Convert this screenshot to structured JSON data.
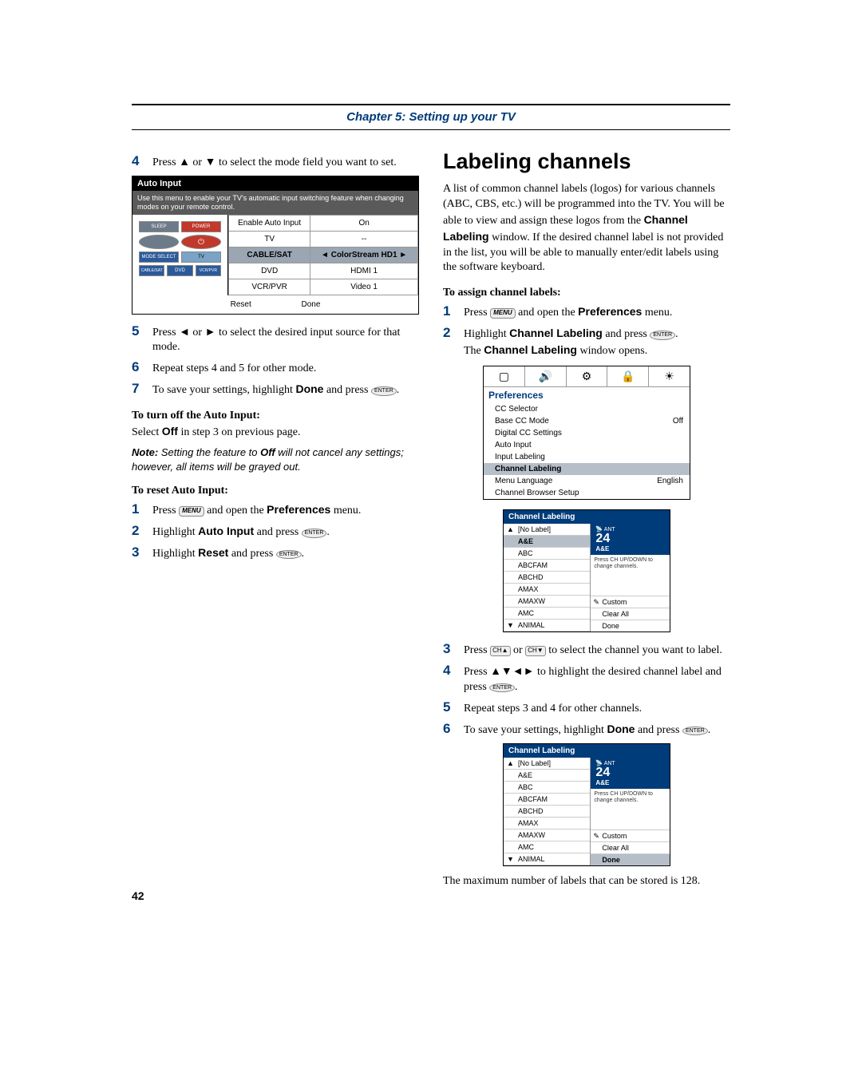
{
  "chapter": {
    "title": "Chapter 5: Setting up your TV"
  },
  "left": {
    "step4": {
      "num": "4",
      "text_a": "Press ",
      "text_b": " or ",
      "text_c": " to select the mode field you want to set."
    },
    "auto_input": {
      "title": "Auto Input",
      "desc": "Use this menu to enable your TV's automatic input switching feature when changing modes on your remote control.",
      "remote": {
        "sleep": "SLEEP",
        "power": "POWER",
        "mode": "MODE SELECT",
        "tv": "TV",
        "cablesat": "CABLE/SAT",
        "dvd": "DVD",
        "vcrpvr": "VCR/PVR"
      },
      "rows": [
        {
          "l": "Enable Auto Input",
          "r": "On"
        },
        {
          "l": "TV",
          "r": "--"
        },
        {
          "l": "CABLE/SAT",
          "r": "ColorStream HD1",
          "sel": true,
          "arrows": true
        },
        {
          "l": "DVD",
          "r": "HDMI 1"
        },
        {
          "l": "VCR/PVR",
          "r": "Video 1"
        }
      ],
      "footer": {
        "reset": "Reset",
        "done": "Done"
      }
    },
    "step5": {
      "num": "5",
      "text_a": "Press ",
      "text_b": " or ",
      "text_c": " to select the desired input source for that mode."
    },
    "step6": {
      "num": "6",
      "text": "Repeat steps 4 and 5 for other mode."
    },
    "step7": {
      "num": "7",
      "text_a": "To save your settings, highlight ",
      "done": "Done",
      "text_b": " and press ",
      "enter": "ENTER",
      "text_c": "."
    },
    "head_turnoff": "To turn off the Auto Input:",
    "turnoff_text_a": "Select ",
    "turnoff_off": "Off",
    "turnoff_text_b": " in step 3 on previous page.",
    "note_label": "Note:",
    "note_text_a": " Setting the feature to ",
    "note_off": "Off",
    "note_text_b": " will not cancel any settings; however, all items will be grayed out.",
    "head_reset": "To reset Auto Input:",
    "r1": {
      "num": "1",
      "text_a": "Press ",
      "menu": "MENU",
      "text_b": " and open the ",
      "pref": "Preferences",
      "text_c": " menu."
    },
    "r2": {
      "num": "2",
      "text_a": "Highlight ",
      "auto": "Auto Input",
      "text_b": " and press ",
      "enter": "ENTER",
      "text_c": "."
    },
    "r3": {
      "num": "3",
      "text_a": "Highlight ",
      "reset": "Reset",
      "text_b": " and press ",
      "enter": "ENTER",
      "text_c": "."
    }
  },
  "right": {
    "h1": "Labeling channels",
    "intro_a": "A list of common channel labels (logos) for various channels (ABC, CBS, etc.) will be programmed into the TV. You will be able to view and assign these logos from the ",
    "intro_bold": "Channel Labeling",
    "intro_b": " window. If the desired channel label is not provided in the list, you will be able to manually enter/edit labels using the software keyboard.",
    "head_assign": "To assign channel labels:",
    "s1": {
      "num": "1",
      "text_a": "Press ",
      "menu": "MENU",
      "text_b": " and open the ",
      "pref": "Preferences",
      "text_c": " menu."
    },
    "s2": {
      "num": "2",
      "text_a": "Highlight ",
      "cl": "Channel Labeling",
      "text_b": " and press ",
      "enter": "ENTER",
      "text_c": ".",
      "text_d": "The ",
      "clw": "Channel Labeling",
      "text_e": " window opens."
    },
    "prefs": {
      "title": "Preferences",
      "rows": [
        {
          "l": "CC Selector",
          "r": ""
        },
        {
          "l": "Base CC Mode",
          "r": "Off"
        },
        {
          "l": "Digital CC Settings",
          "r": ""
        },
        {
          "l": "Auto Input",
          "r": ""
        },
        {
          "l": "Input Labeling",
          "r": ""
        },
        {
          "l": "Channel Labeling",
          "r": "",
          "sel": true
        },
        {
          "l": "Menu Language",
          "r": "English"
        },
        {
          "l": "Channel Browser Setup",
          "r": ""
        }
      ]
    },
    "cl_panel_1": {
      "title": "Channel Labeling",
      "list": [
        {
          "t": "[No Label]",
          "up": true
        },
        {
          "t": "A&E",
          "sel": true
        },
        {
          "t": "ABC"
        },
        {
          "t": "ABCFAM"
        },
        {
          "t": "ABCHD"
        },
        {
          "t": "AMAX"
        },
        {
          "t": "AMAXW"
        },
        {
          "t": "AMC"
        },
        {
          "t": "ANIMAL",
          "down": true
        }
      ],
      "preview": {
        "ant": "ANT",
        "num": "24",
        "label": "A&E"
      },
      "hint": "Press CH UP/DOWN to change channels.",
      "btns": [
        {
          "t": "Custom",
          "pencil": true
        },
        {
          "t": "Clear All"
        },
        {
          "t": "Done"
        }
      ]
    },
    "s3": {
      "num": "3",
      "text_a": "Press ",
      "text_b": " or ",
      "text_c": " to select the channel you want to label."
    },
    "s4": {
      "num": "4",
      "text_a": "Press ",
      "text_b": " to highlight the desired channel label and press ",
      "enter": "ENTER",
      "text_c": "."
    },
    "s5": {
      "num": "5",
      "text": "Repeat steps 3 and 4 for other channels."
    },
    "s6": {
      "num": "6",
      "text_a": "To save your settings, highlight ",
      "done": "Done",
      "text_b": " and press ",
      "enter": "ENTER",
      "text_c": "."
    },
    "cl_panel_2": {
      "title": "Channel Labeling",
      "list": [
        {
          "t": "[No Label]",
          "up": true
        },
        {
          "t": "A&E"
        },
        {
          "t": "ABC"
        },
        {
          "t": "ABCFAM"
        },
        {
          "t": "ABCHD"
        },
        {
          "t": "AMAX"
        },
        {
          "t": "AMAXW"
        },
        {
          "t": "AMC"
        },
        {
          "t": "ANIMAL",
          "down": true
        }
      ],
      "preview": {
        "ant": "ANT",
        "num": "24",
        "label": "A&E"
      },
      "hint": "Press CH UP/DOWN to change channels.",
      "btns": [
        {
          "t": "Custom",
          "pencil": true
        },
        {
          "t": "Clear All"
        },
        {
          "t": "Done",
          "sel": true
        }
      ]
    },
    "footer_text": "The maximum number of labels that can be stored is 128."
  },
  "page_num": "42"
}
